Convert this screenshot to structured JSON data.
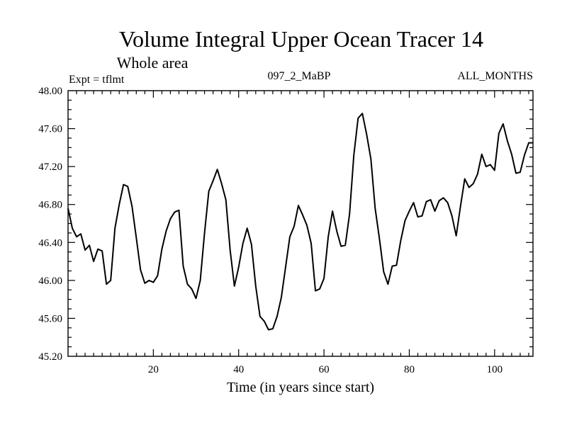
{
  "chart_data": {
    "type": "line",
    "title": "Volume Integral Upper Ocean Tracer 14",
    "subtitle": "Whole area",
    "annotations": {
      "left": "Expt = tflmt",
      "center": "097_2_MaBP",
      "right": "ALL_MONTHS"
    },
    "xlabel": "Time (in years since start)",
    "ylabel": "",
    "xlim": [
      0,
      109
    ],
    "ylim": [
      45.2,
      48.0
    ],
    "xticks": [
      20,
      40,
      60,
      80,
      100
    ],
    "xtick_labels": [
      "20",
      "40",
      "60",
      "80",
      "100"
    ],
    "yticks": [
      45.2,
      45.6,
      46.0,
      46.4,
      46.8,
      47.2,
      47.6,
      48.0
    ],
    "ytick_labels": [
      "45.20",
      "45.60",
      "46.00",
      "46.40",
      "46.80",
      "47.20",
      "47.60",
      "48.00"
    ],
    "grid": false,
    "series": [
      {
        "name": "tracer14",
        "color": "#000000",
        "x": [
          0,
          1,
          2,
          3,
          4,
          5,
          6,
          7,
          8,
          9,
          10,
          11,
          12,
          13,
          14,
          15,
          16,
          17,
          18,
          19,
          20,
          21,
          22,
          23,
          24,
          25,
          26,
          27,
          28,
          29,
          30,
          31,
          32,
          33,
          34,
          35,
          36,
          37,
          38,
          39,
          40,
          41,
          42,
          43,
          44,
          45,
          46,
          47,
          48,
          49,
          50,
          51,
          52,
          53,
          54,
          55,
          56,
          57,
          58,
          59,
          60,
          61,
          62,
          63,
          64,
          65,
          66,
          67,
          68,
          69,
          70,
          71,
          72,
          73,
          74,
          75,
          76,
          77,
          78,
          79,
          80,
          81,
          82,
          83,
          84,
          85,
          86,
          87,
          88,
          89,
          90,
          91,
          92,
          93,
          94,
          95,
          96,
          97,
          98,
          99,
          100,
          101,
          102,
          103,
          104,
          105,
          106,
          107,
          108,
          109
        ],
        "values": [
          46.76,
          46.55,
          46.46,
          46.49,
          46.32,
          46.37,
          46.2,
          46.33,
          46.31,
          45.96,
          46.0,
          46.55,
          46.8,
          47.01,
          46.99,
          46.78,
          46.45,
          46.11,
          45.97,
          46.0,
          45.98,
          46.05,
          46.33,
          46.52,
          46.65,
          46.72,
          46.74,
          46.15,
          45.96,
          45.91,
          45.81,
          46.0,
          46.5,
          46.94,
          47.05,
          47.17,
          47.02,
          46.85,
          46.32,
          45.94,
          46.14,
          46.39,
          46.55,
          46.38,
          45.94,
          45.62,
          45.57,
          45.48,
          45.49,
          45.62,
          45.82,
          46.14,
          46.46,
          46.57,
          46.79,
          46.69,
          46.58,
          46.39,
          45.89,
          45.91,
          46.02,
          46.46,
          46.73,
          46.52,
          46.36,
          46.37,
          46.7,
          47.32,
          47.71,
          47.76,
          47.54,
          47.28,
          46.76,
          46.44,
          46.09,
          45.96,
          46.15,
          46.16,
          46.42,
          46.63,
          46.73,
          46.82,
          46.67,
          46.68,
          46.83,
          46.85,
          46.73,
          46.84,
          46.87,
          46.82,
          46.68,
          46.47,
          46.78,
          47.07,
          46.98,
          47.02,
          47.12,
          47.33,
          47.2,
          47.22,
          47.16,
          47.55,
          47.65,
          47.47,
          47.33,
          47.13,
          47.14,
          47.32,
          47.45,
          47.45
        ]
      }
    ]
  }
}
